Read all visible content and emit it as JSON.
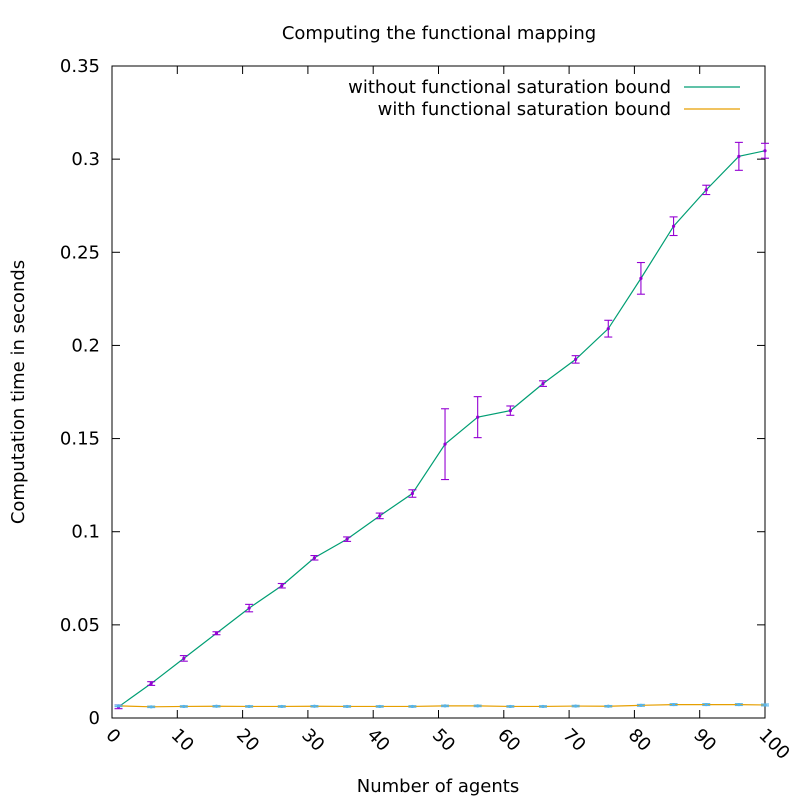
{
  "chart_data": {
    "type": "line",
    "title": "Computing the functional mapping",
    "xlabel": "Number of agents",
    "ylabel": "Computation time in seconds",
    "xlim": [
      0,
      100
    ],
    "ylim": [
      0,
      0.35
    ],
    "xticks": [
      "0",
      "10",
      "20",
      "30",
      "40",
      "50",
      "60",
      "70",
      "80",
      "90",
      "100"
    ],
    "yticks": [
      "0",
      "0.05",
      "0.1",
      "0.15",
      "0.2",
      "0.25",
      "0.3",
      "0.35"
    ],
    "x_tick_rotation_deg": 45,
    "grid": false,
    "legend_position": "top-right",
    "series": [
      {
        "name": "without functional saturation bound",
        "color": "#009e73",
        "error_bar_color": "#9400d3",
        "x": [
          1,
          6,
          11,
          16,
          21,
          26,
          31,
          36,
          41,
          46,
          51,
          56,
          61,
          66,
          71,
          76,
          81,
          86,
          91,
          96,
          100
        ],
        "y": [
          0.006,
          0.0185,
          0.032,
          0.0455,
          0.059,
          0.071,
          0.086,
          0.096,
          0.1085,
          0.1205,
          0.147,
          0.1615,
          0.165,
          0.1795,
          0.1925,
          0.209,
          0.236,
          0.264,
          0.2835,
          0.3015,
          0.3045
        ],
        "err": [
          0.001,
          0.001,
          0.0015,
          0.0008,
          0.002,
          0.0012,
          0.0012,
          0.0012,
          0.0015,
          0.002,
          0.019,
          0.011,
          0.0025,
          0.0015,
          0.002,
          0.0045,
          0.0085,
          0.005,
          0.0025,
          0.0075,
          0.004
        ]
      },
      {
        "name": "with functional saturation bound",
        "color": "#e69f00",
        "error_bar_color": "#56b4e9",
        "x": [
          1,
          6,
          11,
          16,
          21,
          26,
          31,
          36,
          41,
          46,
          51,
          56,
          61,
          66,
          71,
          76,
          81,
          86,
          91,
          96,
          100
        ],
        "y": [
          0.0065,
          0.006,
          0.0062,
          0.0063,
          0.0062,
          0.0062,
          0.0063,
          0.0062,
          0.0062,
          0.0062,
          0.0065,
          0.0065,
          0.0062,
          0.0062,
          0.0064,
          0.0063,
          0.0068,
          0.0072,
          0.0072,
          0.0072,
          0.007
        ],
        "err": [
          0.0004,
          0.0004,
          0.0004,
          0.0004,
          0.0004,
          0.0004,
          0.0004,
          0.0004,
          0.0004,
          0.0004,
          0.0004,
          0.0004,
          0.0004,
          0.0004,
          0.0004,
          0.0004,
          0.0005,
          0.0005,
          0.0005,
          0.0005,
          0.0005
        ]
      }
    ]
  }
}
